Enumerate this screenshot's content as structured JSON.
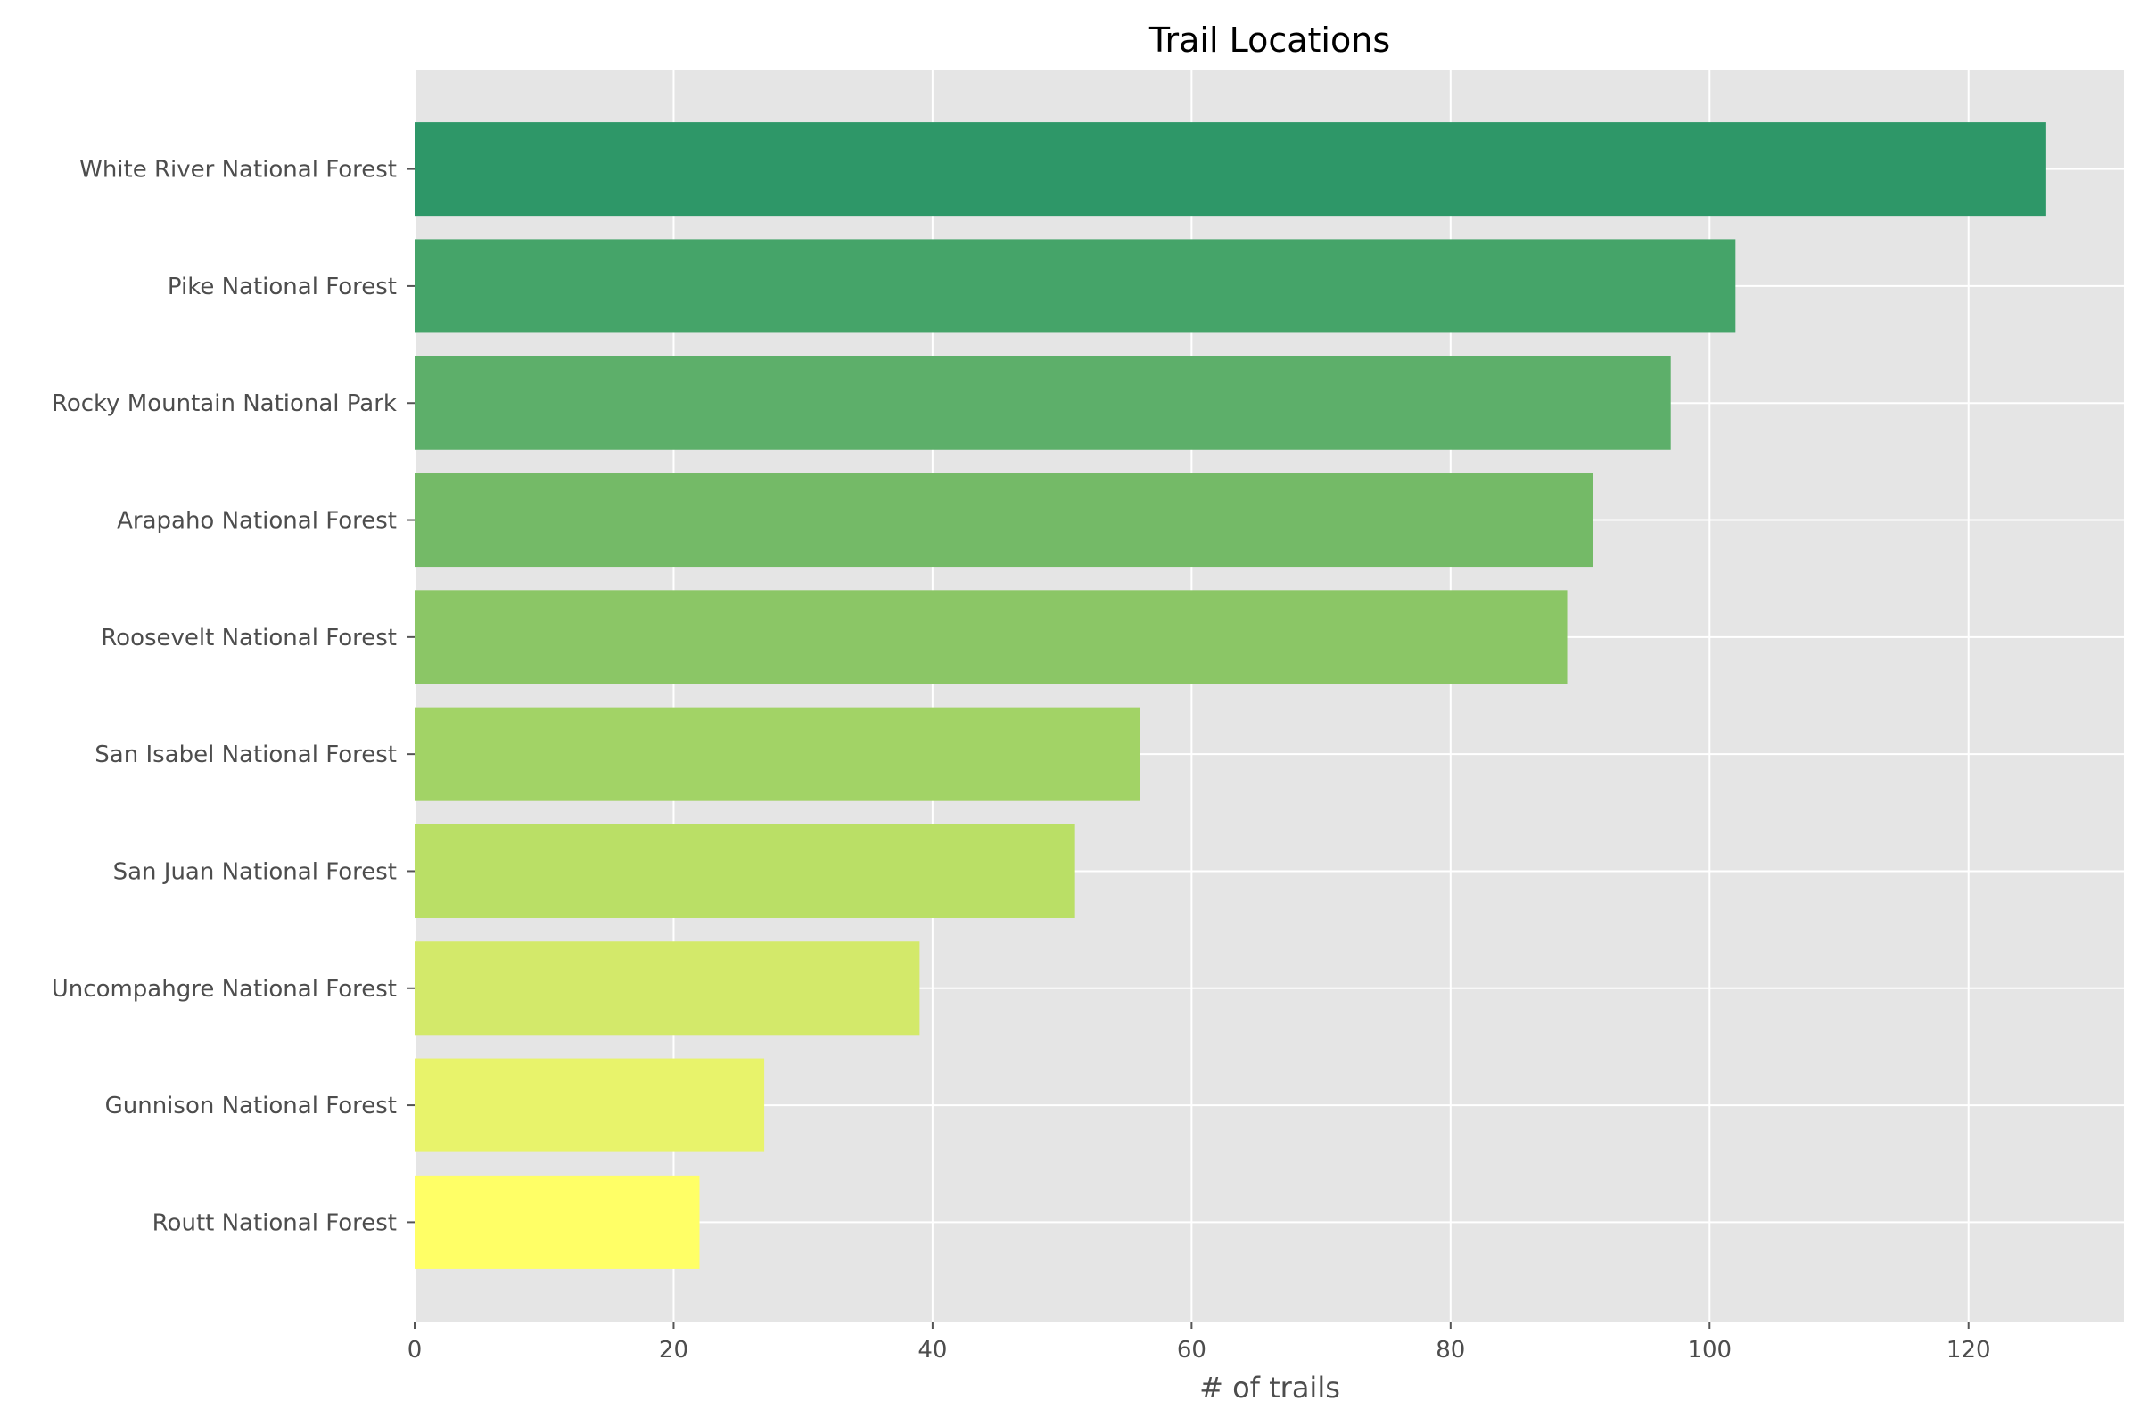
{
  "chart_data": {
    "type": "bar",
    "orientation": "horizontal",
    "title": "Trail Locations",
    "xlabel": "# of trails",
    "ylabel": "",
    "xlim": [
      0,
      132
    ],
    "xticks": [
      0,
      20,
      40,
      60,
      80,
      100,
      120
    ],
    "grid": true,
    "style": "ggplot",
    "categories": [
      "White River National Forest",
      "Pike National Forest",
      "Rocky Mountain National Park",
      "Arapaho National Forest",
      "Roosevelt National Forest",
      "San Isabel National Forest",
      "San Juan National Forest",
      "Uncompahgre National Forest",
      "Gunnison National Forest",
      "Routt National Forest"
    ],
    "values": [
      126,
      102,
      97,
      91,
      89,
      56,
      51,
      39,
      27,
      22
    ],
    "colors": [
      "#2e9768",
      "#45a469",
      "#5daf6a",
      "#74ba67",
      "#8bc666",
      "#a2d366",
      "#badf66",
      "#d3e96a",
      "#e8f36b",
      "#ffff66"
    ],
    "background_color": "#e5e5e5",
    "grid_color": "#ffffff"
  }
}
